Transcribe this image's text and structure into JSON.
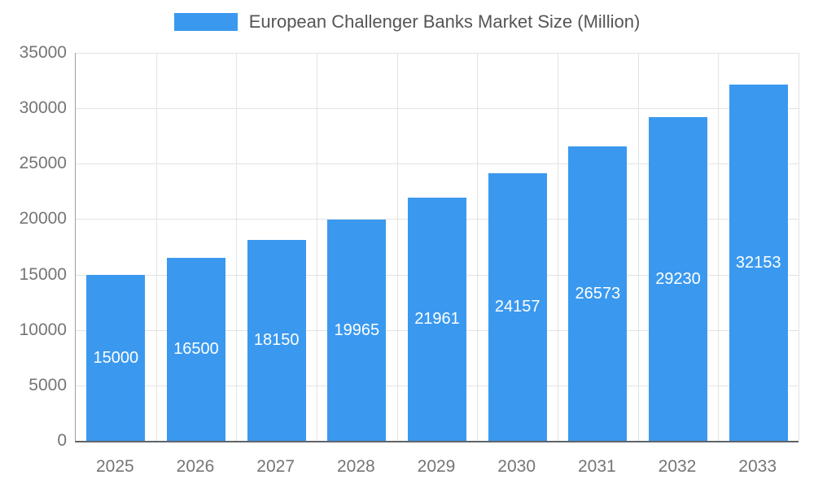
{
  "chart_data": {
    "type": "bar",
    "title": "European Challenger Banks Market Size (Million)",
    "categories": [
      "2025",
      "2026",
      "2027",
      "2028",
      "2029",
      "2030",
      "2031",
      "2032",
      "2033"
    ],
    "values": [
      15000,
      16500,
      18150,
      19965,
      21961,
      24157,
      26573,
      29230,
      32153
    ],
    "xlabel": "",
    "ylabel": "",
    "ylim": [
      0,
      35000
    ],
    "ytick_step": 5000,
    "y_tick_labels": [
      "0",
      "5000",
      "10000",
      "15000",
      "20000",
      "25000",
      "30000",
      "35000"
    ],
    "grid": true,
    "legend_position": "top",
    "bar_color": "#3A99EF",
    "value_label_color": "#ffffff",
    "axis_text_color": "#757575",
    "gridline_color": "#e3e3e3"
  }
}
